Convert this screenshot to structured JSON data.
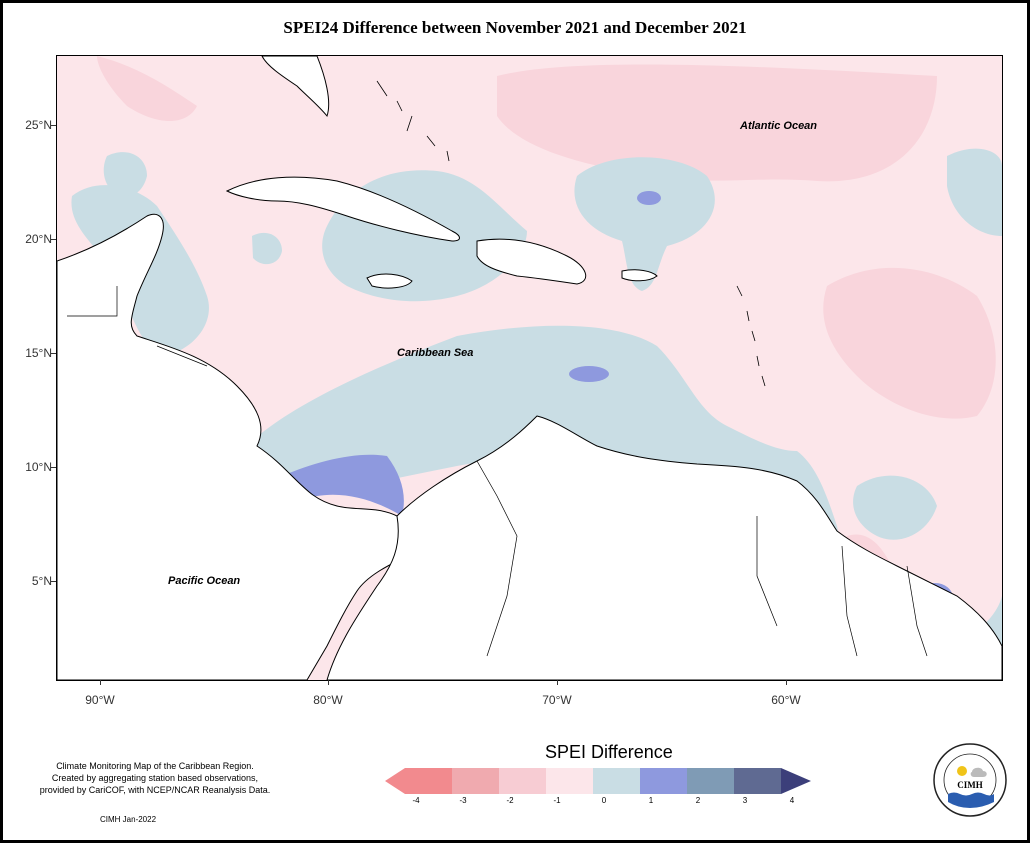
{
  "title": "SPEI24 Difference between November 2021 and December 2021",
  "map": {
    "latitude_labels": [
      "25°N",
      "20°N",
      "15°N",
      "10°N",
      "5°N"
    ],
    "longitude_labels": [
      "90°W",
      "80°W",
      "70°W",
      "60°W"
    ],
    "regions": {
      "atlantic": "Atlantic Ocean",
      "caribbean": "Caribbean Sea",
      "pacific": "Pacific Ocean"
    },
    "colors": {
      "water_base": "#fce6ea",
      "negative_light": "#f9d5dc",
      "negative_mid": "#f4c0c6",
      "positive_light": "#c9dde4",
      "positive_mid": "#8e99de",
      "land": "#ffffff"
    }
  },
  "footnote": {
    "line1": "Climate Monitoring Map of the Caribbean Region.",
    "line2": "Created by aggregating station based observations,",
    "line3": "provided by CariCOF, with NCEP/NCAR Reanalysis Data."
  },
  "credit": "CIMH Jan-2022",
  "legend": {
    "title": "SPEI Difference",
    "ticks": [
      "-4",
      "-3",
      "-2",
      "-1",
      "0",
      "1",
      "2",
      "3",
      "4"
    ],
    "colors": [
      "#f28a8e",
      "#f0aaaf",
      "#f7ccd3",
      "#fce6ea",
      "#c9dde4",
      "#8e99de",
      "#7f9bb5",
      "#5f6a92",
      "#3c3f7a"
    ]
  },
  "logo": {
    "name": "CIMH"
  }
}
